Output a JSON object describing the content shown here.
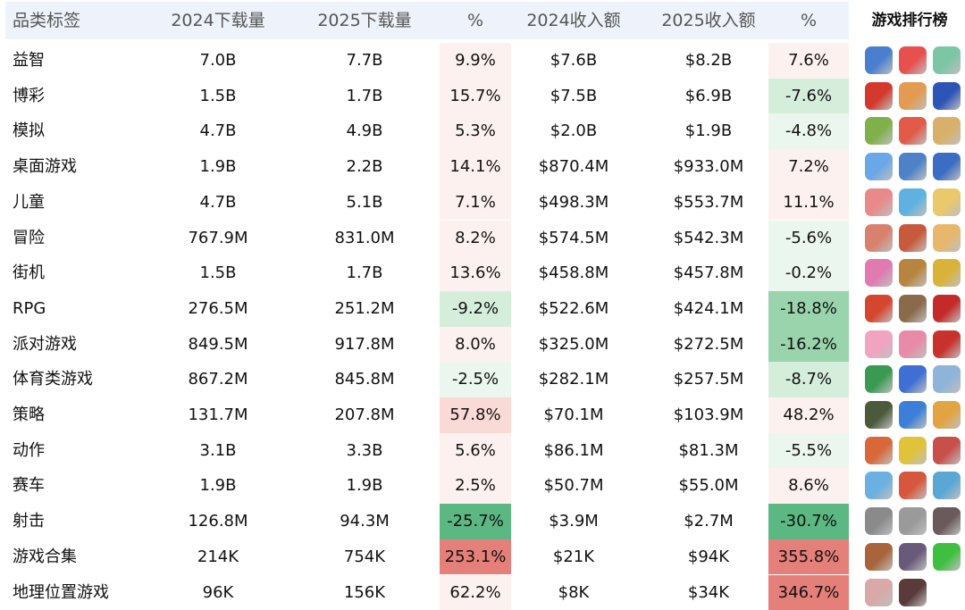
{
  "header": {
    "category": "品类标签",
    "dl_2024": "2024下载量",
    "dl_2025": "2025下载量",
    "dl_pct": "%",
    "rev_2024": "2024收入额",
    "rev_2025": "2025收入额",
    "rev_pct": "%",
    "ranking": "游戏排行榜"
  },
  "colors": {
    "header_bg": "#eef3fb",
    "neg_strong": "#5cb883",
    "neg_mid": "#9ad4ad",
    "neg_light": "#d5eedc",
    "neg_faint": "#eaf6ee",
    "pos_strong": "#e57f79",
    "pos_mid": "#f3b4ae",
    "pos_light": "#fadad7",
    "pos_faint": "#fdf1ef"
  },
  "rows": [
    {
      "category": "益智",
      "dl_2024": "7.0B",
      "dl_2025": "7.7B",
      "dl_pct": "9.9%",
      "dl_tone": "pos_faint",
      "rev_2024": "$7.6B",
      "rev_2025": "$8.2B",
      "rev_pct": "7.6%",
      "rev_tone": "pos_faint",
      "icons": [
        "puzzle-king-icon",
        "candy-crush-icon",
        "makeover-icon"
      ],
      "icon_colors": [
        "#4a7fd0",
        "#e84f4f",
        "#7cc6a6"
      ]
    },
    {
      "category": "博彩",
      "dl_2024": "1.5B",
      "dl_2025": "1.7B",
      "dl_pct": "15.7%",
      "dl_tone": "pos_faint",
      "rev_2024": "$7.5B",
      "rev_2025": "$6.9B",
      "rev_pct": "-7.6%",
      "rev_tone": "neg_light",
      "icons": [
        "monopoly-icon",
        "coin-master-icon",
        "casino-icon"
      ],
      "icon_colors": [
        "#d33a2c",
        "#e39a52",
        "#2d55b8"
      ]
    },
    {
      "category": "模拟",
      "dl_2024": "4.7B",
      "dl_2025": "4.9B",
      "dl_pct": "5.3%",
      "dl_tone": "pos_faint",
      "rev_2024": "$2.0B",
      "rev_2025": "$1.9B",
      "rev_pct": "-4.8%",
      "rev_tone": "neg_faint",
      "icons": [
        "farm-icon",
        "chicken-icon",
        "town-icon"
      ],
      "icon_colors": [
        "#7fb04a",
        "#e25a48",
        "#d9b06a"
      ]
    },
    {
      "category": "桌面游戏",
      "dl_2024": "1.9B",
      "dl_2025": "2.2B",
      "dl_pct": "14.1%",
      "dl_tone": "pos_faint",
      "rev_2024": "$870.4M",
      "rev_2025": "$933.0M",
      "rev_pct": "7.2%",
      "rev_tone": "pos_faint",
      "icons": [
        "solitaire-icon",
        "board-icon",
        "dice-icon"
      ],
      "icon_colors": [
        "#6aa7e6",
        "#4d82c9",
        "#3b6dc2"
      ]
    },
    {
      "category": "儿童",
      "dl_2024": "4.7B",
      "dl_2025": "5.1B",
      "dl_pct": "7.1%",
      "dl_tone": "pos_faint",
      "rev_2024": "$498.3M",
      "rev_2025": "$553.7M",
      "rev_pct": "11.1%",
      "rev_tone": "pos_faint",
      "icons": [
        "kids-house-icon",
        "panda-icon",
        "bluey-icon"
      ],
      "icon_colors": [
        "#e88a8a",
        "#5fb2e0",
        "#e9c96a"
      ]
    },
    {
      "category": "冒险",
      "dl_2024": "767.9M",
      "dl_2025": "831.0M",
      "dl_pct": "8.2%",
      "dl_tone": "pos_faint",
      "rev_2024": "$574.5M",
      "rev_2025": "$542.3M",
      "rev_pct": "-5.6%",
      "rev_tone": "neg_faint",
      "icons": [
        "adventure-girl-icon",
        "desert-icon",
        "explorer-icon"
      ],
      "icon_colors": [
        "#d8826e",
        "#c65a3a",
        "#e7b86b"
      ]
    },
    {
      "category": "街机",
      "dl_2024": "1.5B",
      "dl_2025": "1.7B",
      "dl_pct": "13.6%",
      "dl_tone": "pos_faint",
      "rev_2024": "$458.8M",
      "rev_2025": "$457.8M",
      "rev_pct": "-0.2%",
      "rev_tone": "neg_faint",
      "icons": [
        "arcade-icon",
        "racer-icon",
        "gold-icon"
      ],
      "icon_colors": [
        "#e07ab0",
        "#b8853f",
        "#d9b23a"
      ]
    },
    {
      "category": "RPG",
      "dl_2024": "276.5M",
      "dl_2025": "251.2M",
      "dl_pct": "-9.2%",
      "dl_tone": "neg_light",
      "rev_2024": "$522.6M",
      "rev_2025": "$424.1M",
      "rev_pct": "-18.8%",
      "rev_tone": "neg_mid",
      "icons": [
        "among-icon",
        "warrior-icon",
        "skull-icon"
      ],
      "icon_colors": [
        "#d6452e",
        "#8a6a4a",
        "#c42a2a"
      ]
    },
    {
      "category": "派对游戏",
      "dl_2024": "849.5M",
      "dl_2025": "917.8M",
      "dl_pct": "8.0%",
      "dl_tone": "pos_faint",
      "rev_2024": "$325.0M",
      "rev_2025": "$272.5M",
      "rev_pct": "-16.2%",
      "rev_tone": "neg_mid",
      "icons": [
        "party-girl-icon",
        "piggy-icon",
        "red-square-icon"
      ],
      "icon_colors": [
        "#f2a3c0",
        "#e88aa8",
        "#c8322c"
      ]
    },
    {
      "category": "体育类游戏",
      "dl_2024": "867.2M",
      "dl_2025": "845.8M",
      "dl_pct": "-2.5%",
      "dl_tone": "neg_faint",
      "rev_2024": "$282.1M",
      "rev_2025": "$257.5M",
      "rev_pct": "-8.7%",
      "rev_tone": "neg_light",
      "icons": [
        "golf-icon",
        "pool-ball-icon",
        "ski-icon"
      ],
      "icon_colors": [
        "#3a9a52",
        "#3f6fd4",
        "#8fb3d9"
      ]
    },
    {
      "category": "策略",
      "dl_2024": "131.7M",
      "dl_2025": "207.8M",
      "dl_pct": "57.8%",
      "dl_tone": "pos_light",
      "rev_2024": "$70.1M",
      "rev_2025": "$103.9M",
      "rev_pct": "48.2%",
      "rev_tone": "pos_faint",
      "icons": [
        "soldier-icon",
        "rocket-icon",
        "king-icon"
      ],
      "icon_colors": [
        "#4a5a3a",
        "#3b7fd8",
        "#e2a442"
      ]
    },
    {
      "category": "动作",
      "dl_2024": "3.1B",
      "dl_2025": "3.3B",
      "dl_pct": "5.6%",
      "dl_tone": "pos_faint",
      "rev_2024": "$86.1M",
      "rev_2025": "$81.3M",
      "rev_pct": "-5.5%",
      "rev_tone": "neg_faint",
      "icons": [
        "runner-icon",
        "rails-icon",
        "subway-icon"
      ],
      "icon_colors": [
        "#d8683a",
        "#e0c33a",
        "#c8504a"
      ]
    },
    {
      "category": "赛车",
      "dl_2024": "1.9B",
      "dl_2025": "1.9B",
      "dl_pct": "2.5%",
      "dl_tone": "pos_faint",
      "rev_2024": "$50.7M",
      "rev_2025": "$55.0M",
      "rev_pct": "8.6%",
      "rev_tone": "pos_faint",
      "icons": [
        "hill-climb-icon",
        "car-chase-icon",
        "plane-icon"
      ],
      "icon_colors": [
        "#6ab0e0",
        "#d7573e",
        "#5aa7d6"
      ]
    },
    {
      "category": "射击",
      "dl_2024": "126.8M",
      "dl_2025": "94.3M",
      "dl_pct": "-25.7%",
      "dl_tone": "neg_strong",
      "rev_2024": "$3.9M",
      "rev_2025": "$2.7M",
      "rev_pct": "-30.7%",
      "rev_tone": "neg_strong",
      "icons": [
        "sniper-icon",
        "jet-icon",
        "shooter-icon"
      ],
      "icon_colors": [
        "#8a8a8a",
        "#9a9a9a",
        "#6a5a5a"
      ]
    },
    {
      "category": "游戏合集",
      "dl_2024": "214K",
      "dl_2025": "754K",
      "dl_pct": "253.1%",
      "dl_tone": "pos_strong",
      "rev_2024": "$21K",
      "rev_2025": "$94K",
      "rev_pct": "355.8%",
      "rev_tone": "pos_strong",
      "icons": [
        "brain-icon",
        "pirate-icon",
        "green-game-icon"
      ],
      "icon_colors": [
        "#a8643a",
        "#6a5a7a",
        "#3fbf3f"
      ]
    },
    {
      "category": "地理位置游戏",
      "dl_2024": "96K",
      "dl_2025": "156K",
      "dl_pct": "62.2%",
      "dl_tone": "pos_faint",
      "rev_2024": "$8K",
      "rev_2025": "$34K",
      "rev_pct": "346.7%",
      "rev_tone": "pos_strong",
      "icons": [
        "map-boy-icon",
        "hat-man-icon"
      ],
      "icon_colors": [
        "#d9a8a8",
        "#5a3a3a"
      ]
    }
  ]
}
